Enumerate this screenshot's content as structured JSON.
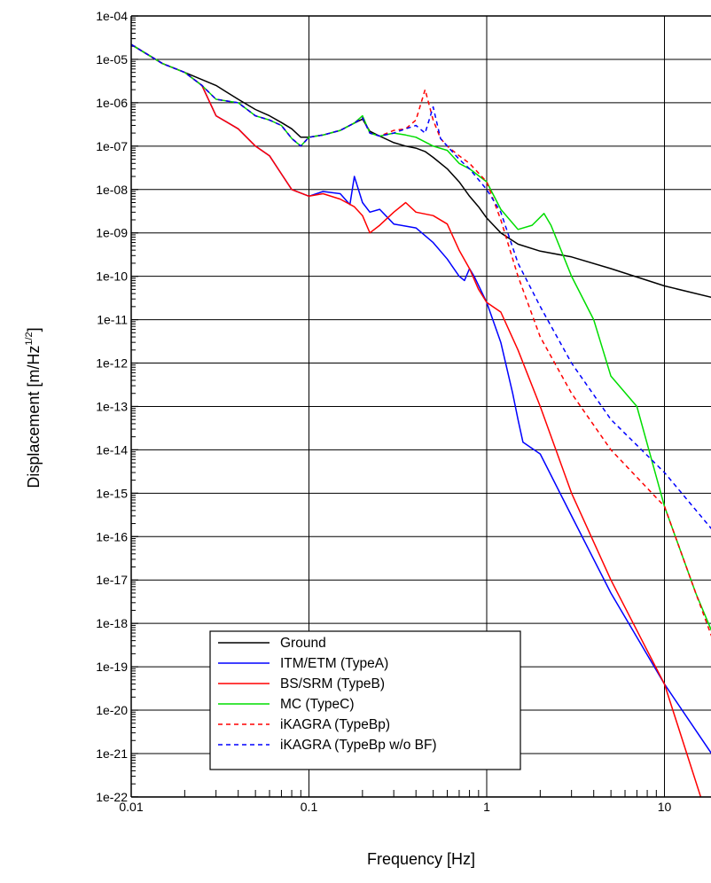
{
  "chart_data": {
    "type": "line",
    "title": "",
    "xlabel": "Frequency [Hz]",
    "ylabel": "Displacement [m/Hz",
    "ylabel_superscript": "1/2",
    "ylabel_suffix": "]",
    "x_scale": "log",
    "y_scale": "log",
    "xlim": [
      0.01,
      20
    ],
    "ylim": [
      1e-22,
      0.0001
    ],
    "x_ticks": [
      {
        "value": 0.01,
        "label": "0.01"
      },
      {
        "value": 0.1,
        "label": "0.1"
      },
      {
        "value": 1,
        "label": "1"
      },
      {
        "value": 10,
        "label": "10"
      }
    ],
    "y_ticks": [
      {
        "value": 0.0001,
        "label": "1e-04"
      },
      {
        "value": 1e-05,
        "label": "1e-05"
      },
      {
        "value": 1e-06,
        "label": "1e-06"
      },
      {
        "value": 1e-07,
        "label": "1e-07"
      },
      {
        "value": 1e-08,
        "label": "1e-08"
      },
      {
        "value": 1e-09,
        "label": "1e-09"
      },
      {
        "value": 1e-10,
        "label": "1e-10"
      },
      {
        "value": 1e-11,
        "label": "1e-11"
      },
      {
        "value": 1e-12,
        "label": "1e-12"
      },
      {
        "value": 1e-13,
        "label": "1e-13"
      },
      {
        "value": 1e-14,
        "label": "1e-14"
      },
      {
        "value": 1e-15,
        "label": "1e-15"
      },
      {
        "value": 1e-16,
        "label": "1e-16"
      },
      {
        "value": 1e-17,
        "label": "1e-17"
      },
      {
        "value": 1e-18,
        "label": "1e-18"
      },
      {
        "value": 1e-19,
        "label": "1e-19"
      },
      {
        "value": 1e-20,
        "label": "1e-20"
      },
      {
        "value": 1e-21,
        "label": "1e-21"
      },
      {
        "value": 1e-22,
        "label": "1e-22"
      }
    ],
    "grid": true,
    "legend_position": "bottom-left",
    "series": [
      {
        "name": "Ground",
        "color": "#000000",
        "dash": "solid",
        "points": [
          [
            0.01,
            2.2e-05
          ],
          [
            0.015,
            8e-06
          ],
          [
            0.02,
            5e-06
          ],
          [
            0.03,
            2.5e-06
          ],
          [
            0.04,
            1.2e-06
          ],
          [
            0.05,
            7e-07
          ],
          [
            0.06,
            5e-07
          ],
          [
            0.07,
            3.5e-07
          ],
          [
            0.08,
            2.5e-07
          ],
          [
            0.09,
            1.6e-07
          ],
          [
            0.1,
            1.6e-07
          ],
          [
            0.12,
            1.8e-07
          ],
          [
            0.15,
            2.3e-07
          ],
          [
            0.18,
            3.4e-07
          ],
          [
            0.2,
            4.2e-07
          ],
          [
            0.22,
            2.2e-07
          ],
          [
            0.25,
            1.7e-07
          ],
          [
            0.3,
            1.2e-07
          ],
          [
            0.35,
            1e-07
          ],
          [
            0.4,
            9e-08
          ],
          [
            0.45,
            7.5e-08
          ],
          [
            0.5,
            5.5e-08
          ],
          [
            0.6,
            3e-08
          ],
          [
            0.7,
            1.5e-08
          ],
          [
            0.8,
            7e-09
          ],
          [
            0.9,
            4e-09
          ],
          [
            1.0,
            2.2e-09
          ],
          [
            1.2,
            1e-09
          ],
          [
            1.5,
            5.5e-10
          ],
          [
            2,
            3.8e-10
          ],
          [
            3,
            2.8e-10
          ],
          [
            5,
            1.5e-10
          ],
          [
            10,
            6e-11
          ],
          [
            20,
            3e-11
          ]
        ]
      },
      {
        "name": "ITM/ETM (TypeA)",
        "color": "#0000ff",
        "dash": "solid",
        "points": [
          [
            0.01,
            2.2e-05
          ],
          [
            0.015,
            8e-06
          ],
          [
            0.02,
            5e-06
          ],
          [
            0.025,
            2.5e-06
          ],
          [
            0.03,
            5e-07
          ],
          [
            0.04,
            2.5e-07
          ],
          [
            0.05,
            1e-07
          ],
          [
            0.06,
            6e-08
          ],
          [
            0.07,
            2.3e-08
          ],
          [
            0.08,
            1e-08
          ],
          [
            0.1,
            7e-09
          ],
          [
            0.12,
            9e-09
          ],
          [
            0.15,
            8e-09
          ],
          [
            0.17,
            4.5e-09
          ],
          [
            0.18,
            2e-08
          ],
          [
            0.2,
            5e-09
          ],
          [
            0.22,
            3e-09
          ],
          [
            0.25,
            3.5e-09
          ],
          [
            0.3,
            1.6e-09
          ],
          [
            0.4,
            1.3e-09
          ],
          [
            0.5,
            6e-10
          ],
          [
            0.6,
            2.5e-10
          ],
          [
            0.7,
            1e-10
          ],
          [
            0.75,
            8e-11
          ],
          [
            0.8,
            1.5e-10
          ],
          [
            0.85,
            1e-10
          ],
          [
            1.0,
            2.5e-11
          ],
          [
            1.2,
            3e-12
          ],
          [
            1.4,
            2e-13
          ],
          [
            1.5,
            5e-14
          ],
          [
            1.6,
            1.5e-14
          ],
          [
            2,
            8e-15
          ],
          [
            3,
            3e-16
          ],
          [
            5,
            5e-18
          ],
          [
            10,
            4e-20
          ],
          [
            20,
            6e-22
          ]
        ]
      },
      {
        "name": "BS/SRM (TypeB)",
        "color": "#ff0000",
        "dash": "solid",
        "points": [
          [
            0.01,
            2.2e-05
          ],
          [
            0.015,
            8e-06
          ],
          [
            0.02,
            5e-06
          ],
          [
            0.025,
            2.5e-06
          ],
          [
            0.03,
            5e-07
          ],
          [
            0.04,
            2.5e-07
          ],
          [
            0.05,
            1e-07
          ],
          [
            0.06,
            6e-08
          ],
          [
            0.07,
            2.3e-08
          ],
          [
            0.08,
            1e-08
          ],
          [
            0.1,
            7e-09
          ],
          [
            0.12,
            8e-09
          ],
          [
            0.15,
            6e-09
          ],
          [
            0.18,
            4e-09
          ],
          [
            0.2,
            2.5e-09
          ],
          [
            0.22,
            1e-09
          ],
          [
            0.25,
            1.5e-09
          ],
          [
            0.3,
            3e-09
          ],
          [
            0.35,
            5e-09
          ],
          [
            0.4,
            3e-09
          ],
          [
            0.5,
            2.5e-09
          ],
          [
            0.6,
            1.6e-09
          ],
          [
            0.7,
            4e-10
          ],
          [
            0.8,
            1.5e-10
          ],
          [
            0.9,
            5e-11
          ],
          [
            1.0,
            2.5e-11
          ],
          [
            1.2,
            1.5e-11
          ],
          [
            1.5,
            2e-12
          ],
          [
            2,
            1e-13
          ],
          [
            3,
            1e-15
          ],
          [
            5,
            1e-17
          ],
          [
            10,
            4e-20
          ],
          [
            16,
            1e-22
          ]
        ]
      },
      {
        "name": "MC (TypeC)",
        "color": "#00dd00",
        "dash": "solid",
        "points": [
          [
            0.01,
            2.2e-05
          ],
          [
            0.015,
            8e-06
          ],
          [
            0.02,
            5e-06
          ],
          [
            0.025,
            2.5e-06
          ],
          [
            0.03,
            1.2e-06
          ],
          [
            0.04,
            1e-06
          ],
          [
            0.05,
            5e-07
          ],
          [
            0.06,
            4e-07
          ],
          [
            0.07,
            3e-07
          ],
          [
            0.08,
            1.5e-07
          ],
          [
            0.09,
            1e-07
          ],
          [
            0.1,
            1.6e-07
          ],
          [
            0.12,
            1.8e-07
          ],
          [
            0.15,
            2.3e-07
          ],
          [
            0.18,
            3.4e-07
          ],
          [
            0.2,
            5e-07
          ],
          [
            0.22,
            2e-07
          ],
          [
            0.25,
            1.7e-07
          ],
          [
            0.3,
            2e-07
          ],
          [
            0.35,
            1.8e-07
          ],
          [
            0.4,
            1.6e-07
          ],
          [
            0.5,
            1e-07
          ],
          [
            0.6,
            8e-08
          ],
          [
            0.7,
            4e-08
          ],
          [
            0.8,
            3e-08
          ],
          [
            1.0,
            1.5e-08
          ],
          [
            1.2,
            3.5e-09
          ],
          [
            1.5,
            1.2e-09
          ],
          [
            1.8,
            1.5e-09
          ],
          [
            2.1,
            2.8e-09
          ],
          [
            2.3,
            1.5e-09
          ],
          [
            3,
            1e-10
          ],
          [
            4,
            1e-11
          ],
          [
            5,
            5e-13
          ],
          [
            7,
            1e-13
          ],
          [
            10,
            5e-16
          ],
          [
            15,
            5e-18
          ],
          [
            20,
            3e-19
          ]
        ]
      },
      {
        "name": "iKAGRA (TypeBp)",
        "color": "#ff0000",
        "dash": "dashed",
        "points": [
          [
            0.01,
            2.2e-05
          ],
          [
            0.015,
            8e-06
          ],
          [
            0.02,
            5e-06
          ],
          [
            0.025,
            2.5e-06
          ],
          [
            0.03,
            1.2e-06
          ],
          [
            0.04,
            1e-06
          ],
          [
            0.05,
            5e-07
          ],
          [
            0.06,
            4e-07
          ],
          [
            0.07,
            3e-07
          ],
          [
            0.08,
            1.5e-07
          ],
          [
            0.09,
            1e-07
          ],
          [
            0.1,
            1.6e-07
          ],
          [
            0.12,
            1.8e-07
          ],
          [
            0.15,
            2.3e-07
          ],
          [
            0.18,
            3.4e-07
          ],
          [
            0.2,
            4.5e-07
          ],
          [
            0.22,
            2e-07
          ],
          [
            0.25,
            1.7e-07
          ],
          [
            0.3,
            2.3e-07
          ],
          [
            0.35,
            2.5e-07
          ],
          [
            0.4,
            4e-07
          ],
          [
            0.45,
            2e-06
          ],
          [
            0.5,
            4e-07
          ],
          [
            0.55,
            1.5e-07
          ],
          [
            0.6,
            1e-07
          ],
          [
            0.7,
            6e-08
          ],
          [
            0.8,
            4e-08
          ],
          [
            1.0,
            1.5e-08
          ],
          [
            1.2,
            2e-09
          ],
          [
            1.5,
            1e-10
          ],
          [
            2,
            4e-12
          ],
          [
            3,
            2e-13
          ],
          [
            5,
            1e-14
          ],
          [
            10,
            5e-16
          ],
          [
            15,
            5e-18
          ],
          [
            20,
            2e-19
          ]
        ]
      },
      {
        "name": "iKAGRA (TypeBp w/o BF)",
        "color": "#0000ff",
        "dash": "dashed",
        "points": [
          [
            0.01,
            2.2e-05
          ],
          [
            0.015,
            8e-06
          ],
          [
            0.02,
            5e-06
          ],
          [
            0.025,
            2.5e-06
          ],
          [
            0.03,
            1.2e-06
          ],
          [
            0.04,
            1e-06
          ],
          [
            0.05,
            5e-07
          ],
          [
            0.06,
            4e-07
          ],
          [
            0.07,
            3e-07
          ],
          [
            0.08,
            1.5e-07
          ],
          [
            0.09,
            1e-07
          ],
          [
            0.1,
            1.6e-07
          ],
          [
            0.12,
            1.8e-07
          ],
          [
            0.15,
            2.3e-07
          ],
          [
            0.18,
            3.4e-07
          ],
          [
            0.2,
            4.5e-07
          ],
          [
            0.22,
            2e-07
          ],
          [
            0.25,
            1.7e-07
          ],
          [
            0.3,
            2e-07
          ],
          [
            0.35,
            2.5e-07
          ],
          [
            0.4,
            3e-07
          ],
          [
            0.45,
            2e-07
          ],
          [
            0.5,
            8e-07
          ],
          [
            0.55,
            1.5e-07
          ],
          [
            0.6,
            1e-07
          ],
          [
            0.7,
            5e-08
          ],
          [
            0.8,
            3e-08
          ],
          [
            1.0,
            1e-08
          ],
          [
            1.2,
            3e-09
          ],
          [
            1.5,
            2e-10
          ],
          [
            2,
            2e-11
          ],
          [
            3,
            1e-12
          ],
          [
            5,
            5e-14
          ],
          [
            10,
            3e-15
          ],
          [
            20,
            1e-16
          ]
        ]
      }
    ]
  }
}
